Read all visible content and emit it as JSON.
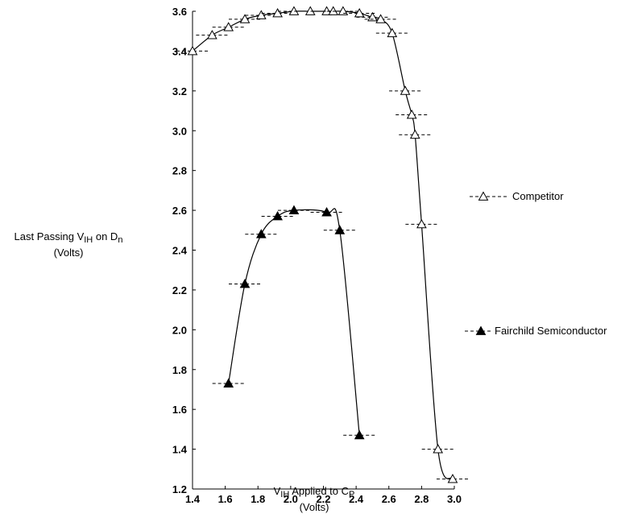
{
  "chart_data": {
    "type": "line",
    "title": "",
    "ylabel": {
      "prefix": "Last Passing V",
      "sub1": "IH",
      "middle": " on D",
      "sub2": "n",
      "units": "(Volts)"
    },
    "xlabel": {
      "prefix": "V",
      "sub1": "IH",
      "middle": " Applied to C",
      "sub2": "P",
      "units": "(Volts)"
    },
    "xlim": [
      1.4,
      3.0
    ],
    "ylim": [
      1.2,
      3.6
    ],
    "x_ticks": [
      "1.4",
      "1.6",
      "1.8",
      "2.0",
      "2.2",
      "2.4",
      "2.6",
      "2.8",
      "3.0"
    ],
    "y_ticks": [
      "1.2",
      "1.4",
      "1.6",
      "1.8",
      "2.0",
      "2.2",
      "2.4",
      "2.6",
      "2.8",
      "3.0",
      "3.2",
      "3.4",
      "3.6"
    ],
    "grid": false,
    "legend_position": "right",
    "series": [
      {
        "name": "Competitor",
        "marker": "open-triangle",
        "points": [
          {
            "x": 1.4,
            "y": 3.4
          },
          {
            "x": 1.52,
            "y": 3.48
          },
          {
            "x": 1.62,
            "y": 3.52
          },
          {
            "x": 1.72,
            "y": 3.56
          },
          {
            "x": 1.82,
            "y": 3.58
          },
          {
            "x": 1.92,
            "y": 3.59
          },
          {
            "x": 2.02,
            "y": 3.6
          },
          {
            "x": 2.12,
            "y": 3.6
          },
          {
            "x": 2.22,
            "y": 3.6
          },
          {
            "x": 2.26,
            "y": 3.6
          },
          {
            "x": 2.32,
            "y": 3.6
          },
          {
            "x": 2.42,
            "y": 3.59
          },
          {
            "x": 2.5,
            "y": 3.57
          },
          {
            "x": 2.55,
            "y": 3.56
          },
          {
            "x": 2.62,
            "y": 3.49
          },
          {
            "x": 2.7,
            "y": 3.2
          },
          {
            "x": 2.74,
            "y": 3.08
          },
          {
            "x": 2.76,
            "y": 2.98
          },
          {
            "x": 2.8,
            "y": 2.53
          },
          {
            "x": 2.9,
            "y": 1.4
          },
          {
            "x": 2.99,
            "y": 1.25
          }
        ]
      },
      {
        "name": "Fairchild Semiconductor",
        "marker": "filled-triangle",
        "points": [
          {
            "x": 1.62,
            "y": 1.73
          },
          {
            "x": 1.72,
            "y": 2.23
          },
          {
            "x": 1.82,
            "y": 2.48
          },
          {
            "x": 1.92,
            "y": 2.57
          },
          {
            "x": 2.02,
            "y": 2.6
          },
          {
            "x": 2.22,
            "y": 2.59
          },
          {
            "x": 2.3,
            "y": 2.5
          },
          {
            "x": 2.42,
            "y": 1.47
          }
        ]
      }
    ]
  }
}
